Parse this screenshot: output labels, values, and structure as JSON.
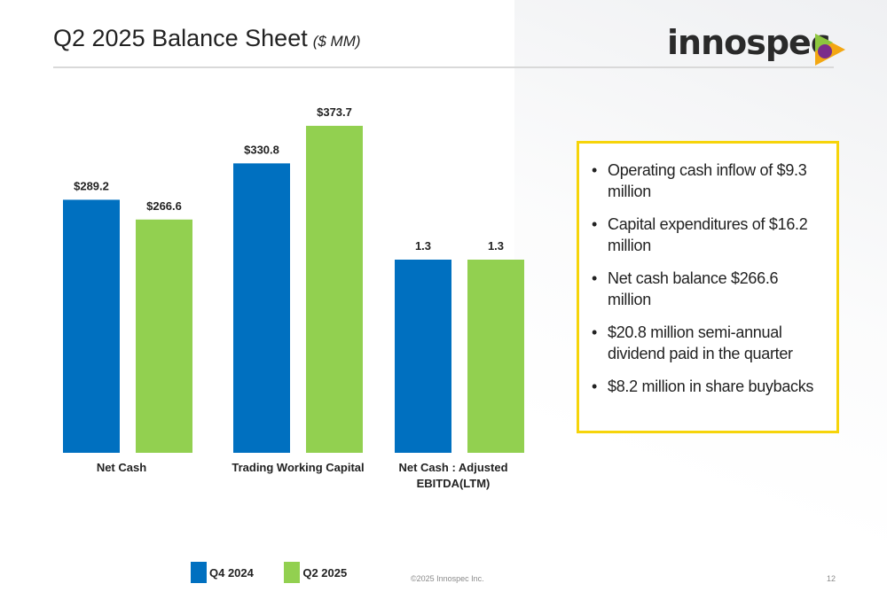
{
  "header": {
    "title": "Q2 2025 Balance Sheet",
    "subtitle": "($ MM)"
  },
  "logo": {
    "text": "innospec",
    "accent_colors": [
      "#f3a712",
      "#8dc63f",
      "#7b2d8b"
    ]
  },
  "chart_data": {
    "type": "bar",
    "categories": [
      "Net Cash",
      "Trading Working Capital",
      "Net Cash : Adjusted EBITDA(LTM)"
    ],
    "series": [
      {
        "name": "Q4 2024",
        "color": "#0070c0",
        "values": [
          289.2,
          330.8,
          1.3
        ],
        "labels": [
          "$289.2",
          "$330.8",
          "1.3"
        ]
      },
      {
        "name": "Q2 2025",
        "color": "#92d050",
        "values": [
          266.6,
          373.7,
          1.3
        ],
        "labels": [
          "$266.6",
          "$373.7",
          "1.3"
        ]
      }
    ],
    "grid": false,
    "legend": "bottom"
  },
  "callout": {
    "bullets": [
      "Operating cash inflow of $9.3 million",
      "Capital expenditures of $16.2 million",
      "Net cash balance $266.6 million",
      "$20.8 million semi-annual dividend paid in the quarter",
      "$8.2 million in share buybacks"
    ]
  },
  "footer": {
    "copyright": "©2025 Innospec Inc.",
    "page_number": "12"
  }
}
